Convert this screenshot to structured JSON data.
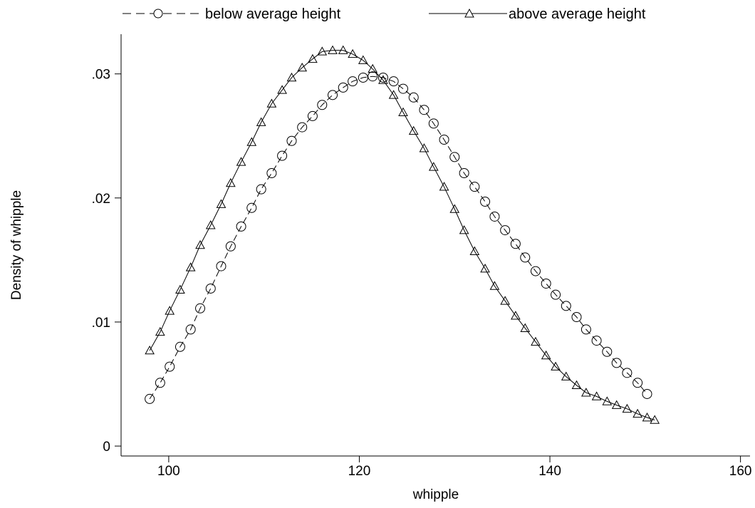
{
  "chart_data": {
    "type": "line",
    "title": "",
    "xlabel": "whipple",
    "ylabel": "Density of whipple",
    "xlim": [
      95,
      161
    ],
    "ylim": [
      -0.0008,
      0.0332
    ],
    "xticks": [
      100,
      120,
      140,
      160
    ],
    "xtick_labels": [
      "100",
      "120",
      "140",
      "160"
    ],
    "yticks": [
      0,
      0.01,
      0.02,
      0.03
    ],
    "ytick_labels": [
      "0",
      ".01",
      ".02",
      ".03"
    ],
    "grid": false,
    "legend_position": "top",
    "series": [
      {
        "name": "below average height",
        "marker": "circle",
        "line_style": "dashed",
        "color": "#000000",
        "x": [
          98.0,
          99.1,
          100.1,
          101.2,
          102.3,
          103.3,
          104.4,
          105.5,
          106.5,
          107.6,
          108.7,
          109.7,
          110.8,
          111.9,
          112.9,
          114.0,
          115.1,
          116.1,
          117.2,
          118.3,
          119.3,
          120.4,
          121.4,
          122.5,
          123.6,
          124.6,
          125.7,
          126.8,
          127.8,
          128.9,
          130.0,
          131.0,
          132.1,
          133.2,
          134.2,
          135.3,
          136.4,
          137.4,
          138.5,
          139.6,
          140.6,
          141.7,
          142.8,
          143.8,
          144.9,
          146.0,
          147.0,
          148.1,
          149.2,
          150.2
        ],
        "y": [
          0.0038,
          0.0051,
          0.0064,
          0.008,
          0.0094,
          0.0111,
          0.0127,
          0.0145,
          0.0161,
          0.0177,
          0.0192,
          0.0207,
          0.022,
          0.0234,
          0.0246,
          0.0257,
          0.0266,
          0.0275,
          0.0283,
          0.0289,
          0.0294,
          0.0297,
          0.0298,
          0.0297,
          0.0294,
          0.0288,
          0.0281,
          0.0271,
          0.026,
          0.0247,
          0.0233,
          0.022,
          0.0209,
          0.0197,
          0.0185,
          0.0174,
          0.0163,
          0.0152,
          0.0141,
          0.0131,
          0.0122,
          0.0113,
          0.0104,
          0.0094,
          0.0085,
          0.0076,
          0.0067,
          0.0059,
          0.0051,
          0.0042
        ]
      },
      {
        "name": "above average height",
        "marker": "triangle",
        "line_style": "solid",
        "color": "#000000",
        "x": [
          98.0,
          99.1,
          100.1,
          101.2,
          102.3,
          103.3,
          104.4,
          105.5,
          106.5,
          107.6,
          108.7,
          109.7,
          110.8,
          111.9,
          112.9,
          114.0,
          115.1,
          116.1,
          117.2,
          118.3,
          119.3,
          120.4,
          121.4,
          122.5,
          123.6,
          124.6,
          125.7,
          126.8,
          127.8,
          128.9,
          130.0,
          131.0,
          132.1,
          133.2,
          134.2,
          135.3,
          136.4,
          137.4,
          138.5,
          139.6,
          140.6,
          141.7,
          142.8,
          143.8,
          144.9,
          146.0,
          147.0,
          148.1,
          149.2,
          150.2,
          151.0
        ],
        "y": [
          0.0077,
          0.0092,
          0.0109,
          0.0126,
          0.0144,
          0.0162,
          0.0178,
          0.0195,
          0.0212,
          0.0229,
          0.0245,
          0.0261,
          0.0276,
          0.0287,
          0.0297,
          0.0305,
          0.0312,
          0.0318,
          0.0319,
          0.0319,
          0.0316,
          0.0311,
          0.0304,
          0.0295,
          0.0283,
          0.0269,
          0.0254,
          0.024,
          0.0225,
          0.0209,
          0.0191,
          0.0174,
          0.0157,
          0.0143,
          0.0129,
          0.0117,
          0.0105,
          0.0095,
          0.0084,
          0.0073,
          0.0064,
          0.0056,
          0.0049,
          0.0043,
          0.004,
          0.0036,
          0.0033,
          0.003,
          0.0026,
          0.0023,
          0.0021
        ]
      }
    ]
  }
}
